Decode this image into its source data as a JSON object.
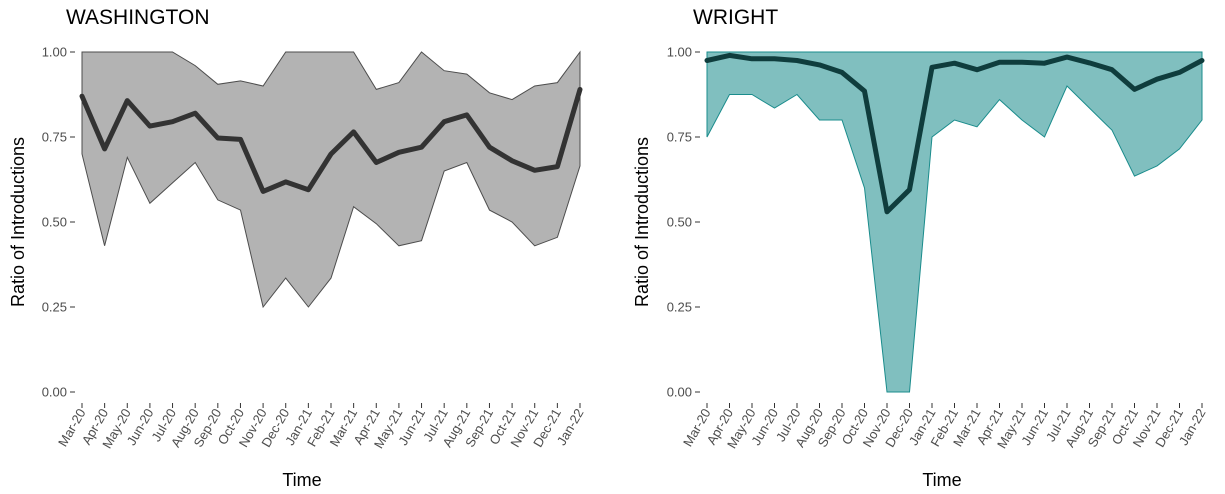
{
  "colors": {
    "washington_band_fill": "#b3b3b3",
    "washington_band_stroke": "#4d4d4d",
    "washington_line": "#333333",
    "wright_band_fill": "#80bfbf",
    "wright_band_stroke": "#1a8c8c",
    "wright_line": "#0f3d3d"
  },
  "chart_data": [
    {
      "type": "area",
      "title": "WASHINGTON",
      "xlabel": "Time",
      "ylabel": "Ratio of Introductions",
      "ylim": [
        0,
        1
      ],
      "yticks": [
        "0.00",
        "0.25",
        "0.50",
        "0.75",
        "1.00"
      ],
      "categories": [
        "Mar-20",
        "Apr-20",
        "May-20",
        "Jun-20",
        "Jul-20",
        "Aug-20",
        "Sep-20",
        "Oct-20",
        "Nov-20",
        "Dec-20",
        "Jan-21",
        "Feb-21",
        "Mar-21",
        "Apr-21",
        "May-21",
        "Jun-21",
        "Jul-21",
        "Aug-21",
        "Sep-21",
        "Oct-21",
        "Nov-21",
        "Dec-21",
        "Jan-22"
      ],
      "grid": false,
      "series": [
        {
          "role": "upper",
          "values": [
            1.0,
            1.0,
            1.0,
            1.0,
            1.0,
            0.96,
            0.905,
            0.915,
            0.9,
            1.0,
            1.0,
            1.0,
            1.0,
            0.89,
            0.91,
            1.0,
            0.945,
            0.935,
            0.88,
            0.86,
            0.9,
            0.91,
            1.0
          ]
        },
        {
          "role": "lower",
          "values": [
            0.7,
            0.43,
            0.69,
            0.555,
            0.615,
            0.675,
            0.565,
            0.535,
            0.25,
            0.335,
            0.25,
            0.335,
            0.545,
            0.495,
            0.43,
            0.445,
            0.65,
            0.675,
            0.535,
            0.5,
            0.43,
            0.455,
            0.665
          ]
        },
        {
          "role": "mean",
          "values": [
            0.87,
            0.715,
            0.857,
            0.782,
            0.795,
            0.82,
            0.747,
            0.743,
            0.59,
            0.618,
            0.595,
            0.7,
            0.765,
            0.675,
            0.705,
            0.72,
            0.795,
            0.815,
            0.72,
            0.68,
            0.652,
            0.663,
            0.89
          ]
        }
      ]
    },
    {
      "type": "area",
      "title": "WRIGHT",
      "xlabel": "Time",
      "ylabel": "Ratio of Introductions",
      "ylim": [
        0,
        1
      ],
      "yticks": [
        "0.00",
        "0.25",
        "0.50",
        "0.75",
        "1.00"
      ],
      "categories": [
        "Mar-20",
        "Apr-20",
        "May-20",
        "Jun-20",
        "Jul-20",
        "Aug-20",
        "Sep-20",
        "Oct-20",
        "Nov-20",
        "Dec-20",
        "Jan-21",
        "Feb-21",
        "Mar-21",
        "Apr-21",
        "May-21",
        "Jun-21",
        "Jul-21",
        "Aug-21",
        "Sep-21",
        "Oct-21",
        "Nov-21",
        "Dec-21",
        "Jan-22"
      ],
      "grid": false,
      "series": [
        {
          "role": "upper",
          "values": [
            1.0,
            1.0,
            1.0,
            1.0,
            1.0,
            1.0,
            1.0,
            1.0,
            1.0,
            1.0,
            1.0,
            1.0,
            1.0,
            1.0,
            1.0,
            1.0,
            1.0,
            1.0,
            1.0,
            1.0,
            1.0,
            1.0,
            1.0
          ]
        },
        {
          "role": "lower",
          "values": [
            0.75,
            0.875,
            0.875,
            0.835,
            0.875,
            0.8,
            0.8,
            0.6,
            0.0,
            0.0,
            0.75,
            0.8,
            0.78,
            0.86,
            0.8,
            0.75,
            0.9,
            0.835,
            0.77,
            0.635,
            0.665,
            0.715,
            0.8
          ]
        },
        {
          "role": "mean",
          "values": [
            0.975,
            0.99,
            0.98,
            0.98,
            0.975,
            0.962,
            0.94,
            0.885,
            0.53,
            0.595,
            0.955,
            0.967,
            0.948,
            0.97,
            0.97,
            0.967,
            0.985,
            0.968,
            0.948,
            0.89,
            0.92,
            0.94,
            0.975
          ]
        }
      ]
    }
  ]
}
